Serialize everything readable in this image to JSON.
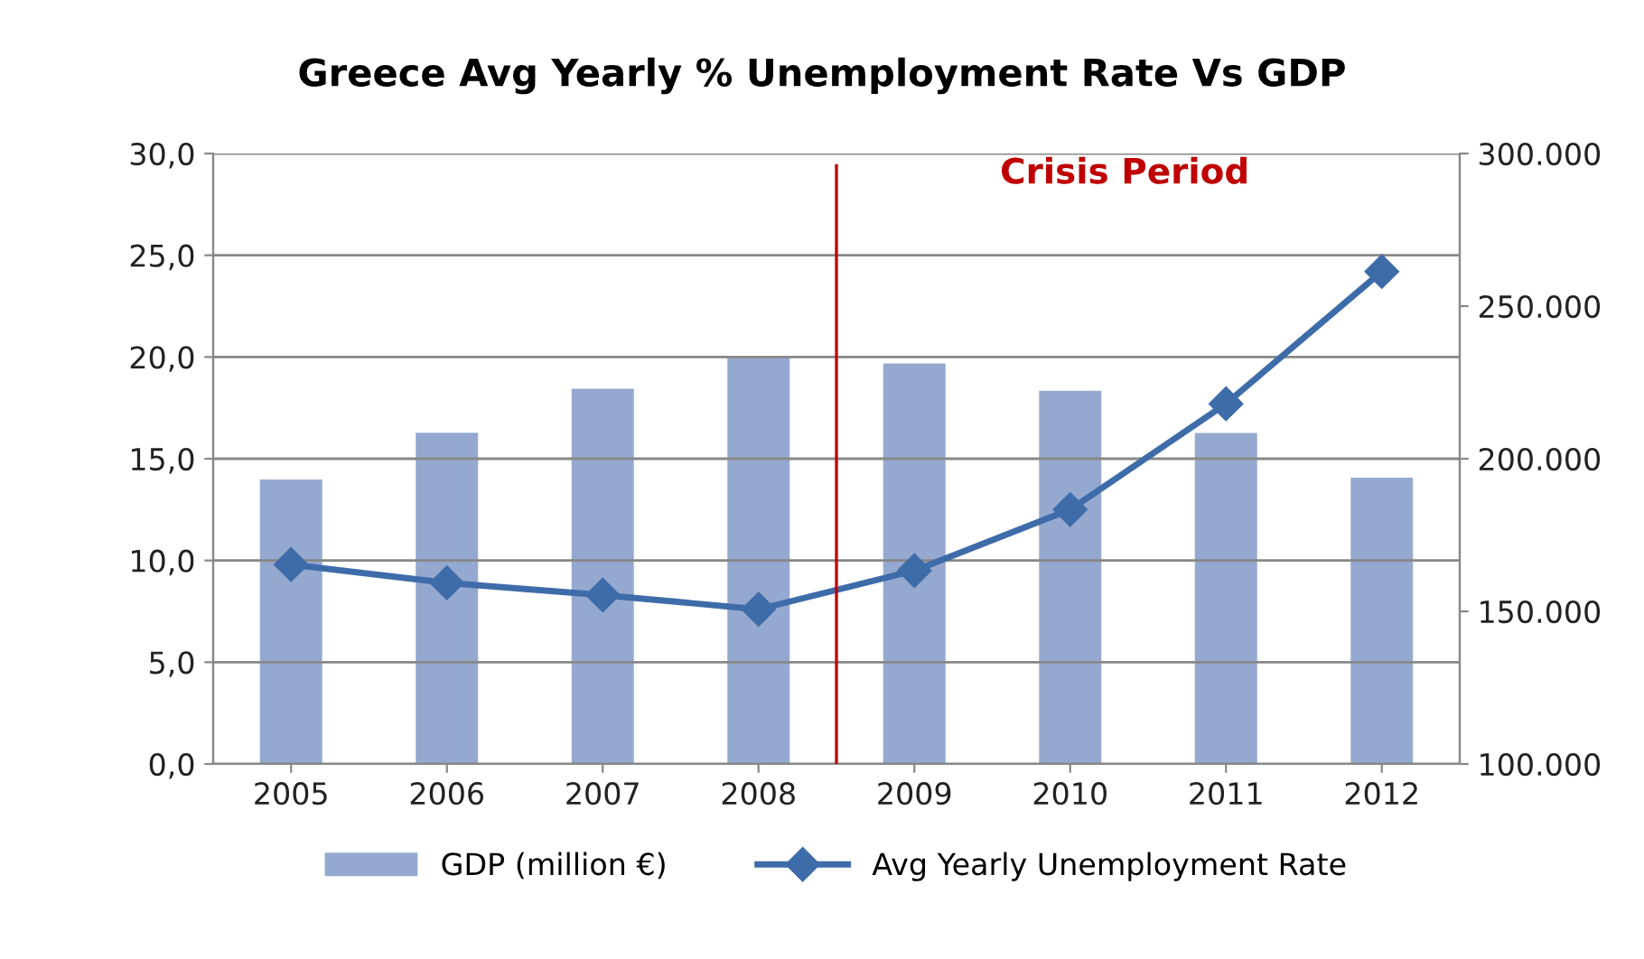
{
  "chart_data": {
    "type": "bar",
    "title": "Greece Avg Yearly % Unemployment Rate Vs GDP",
    "x": [
      2005,
      2006,
      2007,
      2008,
      2009,
      2010,
      2011,
      2012
    ],
    "xlim": [
      2004.5,
      2012.5
    ],
    "xticks": [
      2005,
      2006,
      2007,
      2008,
      2009,
      2010,
      2011,
      2012
    ],
    "series": [
      {
        "name": "GDP (million €)",
        "axis": "y2",
        "color": "#95a9d0",
        "values": [
          193200,
          208500,
          222900,
          233500,
          231200,
          222300,
          208400,
          193800
        ]
      },
      {
        "name": "Avg Yearly Unemployment Rate",
        "type": "line",
        "axis": "y",
        "color": "#3e6ca9",
        "marker": "diamond",
        "line_style": "solid",
        "values": [
          9.8,
          8.9,
          8.3,
          7.6,
          9.5,
          12.5,
          17.7,
          24.2
        ]
      }
    ],
    "ylim": [
      0,
      30
    ],
    "yticks": [
      {
        "value": 0,
        "label": "0,0"
      },
      {
        "value": 5,
        "label": "5,0"
      },
      {
        "value": 10,
        "label": "10,0"
      },
      {
        "value": 15,
        "label": "15,0"
      },
      {
        "value": 20,
        "label": "20,0"
      },
      {
        "value": 25,
        "label": "25,0"
      },
      {
        "value": 30,
        "label": "30,0"
      }
    ],
    "y2lim": [
      100000,
      300000
    ],
    "y2ticks": [
      {
        "value": 100000,
        "label": "100.000"
      },
      {
        "value": 150000,
        "label": "150.000"
      },
      {
        "value": 200000,
        "label": "200.000"
      },
      {
        "value": 250000,
        "label": "250.000"
      },
      {
        "value": 300000,
        "label": "300.000"
      }
    ],
    "ref_lines": [
      {
        "axis": "x",
        "value": 2008.5,
        "label": "Crisis Period",
        "color": "#c00000"
      }
    ],
    "grid": "y",
    "legend": "bottom"
  }
}
